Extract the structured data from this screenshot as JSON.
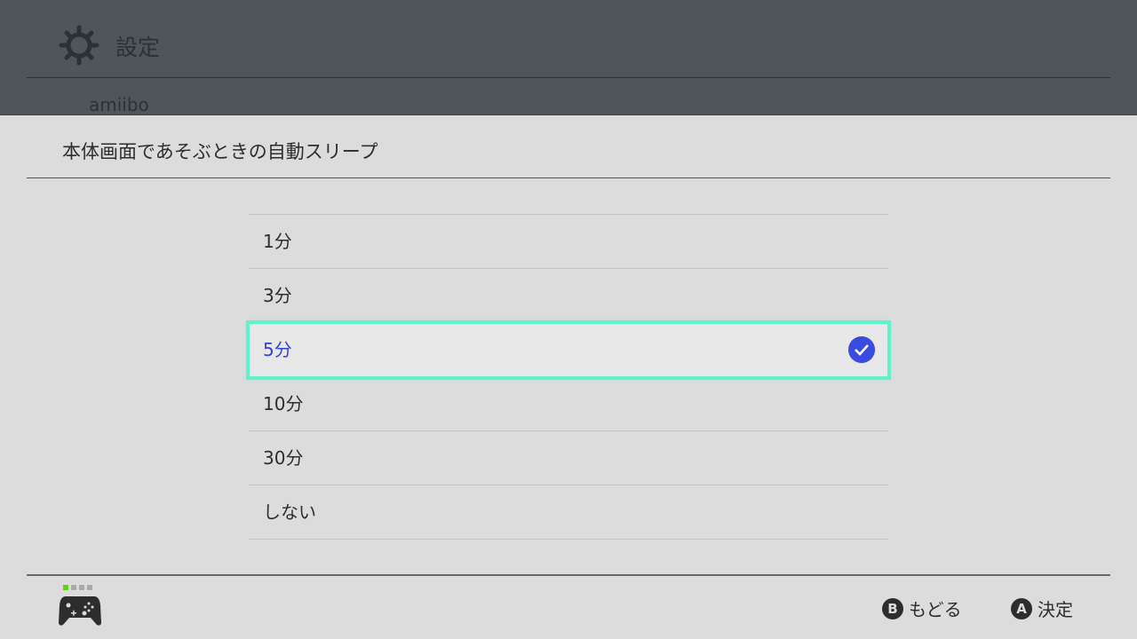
{
  "header": {
    "title": "設定",
    "partial_item": "amiibo"
  },
  "dialog": {
    "title": "本体画面であそぶときの自動スリープ",
    "options": [
      "1分",
      "3分",
      "5分",
      "10分",
      "30分",
      "しない"
    ],
    "selected": "5分"
  },
  "footer": {
    "back_key": "B",
    "back_label": "もどる",
    "ok_key": "A",
    "ok_label": "決定",
    "player_indicator": "1"
  },
  "colors": {
    "accent": "#3a4be0",
    "focus": "#5ef2c8",
    "player": "#5fd40d"
  }
}
